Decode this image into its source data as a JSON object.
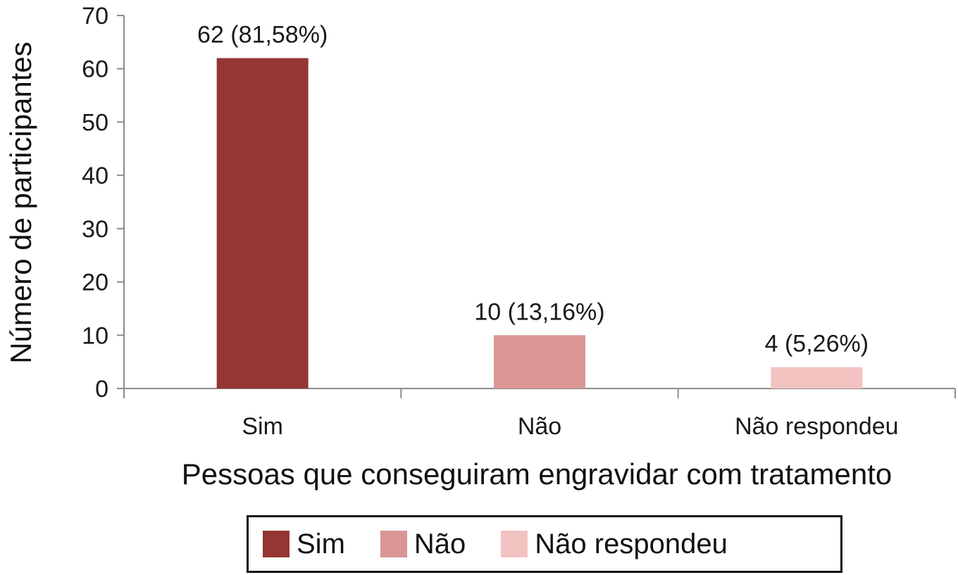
{
  "chart_data": {
    "type": "bar",
    "categories": [
      "Sim",
      "Não",
      "Não respondeu"
    ],
    "values": [
      62,
      10,
      4
    ],
    "data_labels": [
      "62 (81,58%)",
      "10 (13,16%)",
      "4 (5,26%)"
    ],
    "colors": [
      "#943634",
      "#d99694",
      "#f2c2c1"
    ],
    "xlabel": "Pessoas que conseguiram engravidar com tratamento",
    "ylabel": "Número de participantes",
    "ylim": [
      0,
      70
    ],
    "yticks": [
      0,
      10,
      20,
      30,
      40,
      50,
      60,
      70
    ],
    "grid": false,
    "legend": {
      "position": "bottom",
      "entries": [
        "Sim",
        "Não",
        "Não respondeu"
      ]
    }
  }
}
